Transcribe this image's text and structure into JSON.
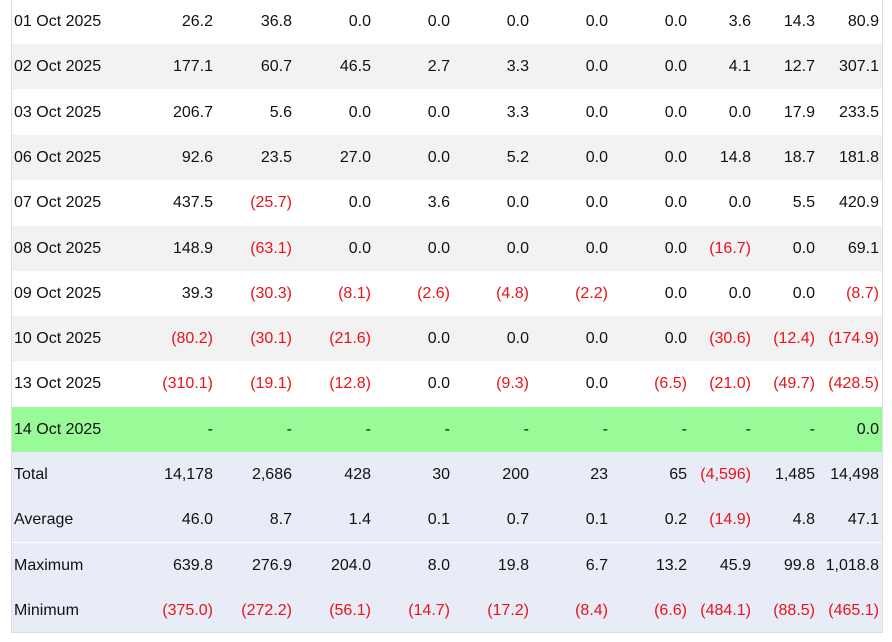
{
  "table": {
    "rows": [
      [
        "01 Oct 2025",
        "26.2",
        "36.8",
        "0.0",
        "0.0",
        "0.0",
        "0.0",
        "0.0",
        "3.6",
        "14.3",
        "80.9"
      ],
      [
        "02 Oct 2025",
        "177.1",
        "60.7",
        "46.5",
        "2.7",
        "3.3",
        "0.0",
        "0.0",
        "4.1",
        "12.7",
        "307.1"
      ],
      [
        "03 Oct 2025",
        "206.7",
        "5.6",
        "0.0",
        "0.0",
        "3.3",
        "0.0",
        "0.0",
        "0.0",
        "17.9",
        "233.5"
      ],
      [
        "06 Oct 2025",
        "92.6",
        "23.5",
        "27.0",
        "0.0",
        "5.2",
        "0.0",
        "0.0",
        "14.8",
        "18.7",
        "181.8"
      ],
      [
        "07 Oct 2025",
        "437.5",
        "(25.7)",
        "0.0",
        "3.6",
        "0.0",
        "0.0",
        "0.0",
        "0.0",
        "5.5",
        "420.9"
      ],
      [
        "08 Oct 2025",
        "148.9",
        "(63.1)",
        "0.0",
        "0.0",
        "0.0",
        "0.0",
        "0.0",
        "(16.7)",
        "0.0",
        "69.1"
      ],
      [
        "09 Oct 2025",
        "39.3",
        "(30.3)",
        "(8.1)",
        "(2.6)",
        "(4.8)",
        "(2.2)",
        "0.0",
        "0.0",
        "0.0",
        "(8.7)"
      ],
      [
        "10 Oct 2025",
        "(80.2)",
        "(30.1)",
        "(21.6)",
        "0.0",
        "0.0",
        "0.0",
        "0.0",
        "(30.6)",
        "(12.4)",
        "(174.9)"
      ],
      [
        "13 Oct 2025",
        "(310.1)",
        "(19.1)",
        "(12.8)",
        "0.0",
        "(9.3)",
        "0.0",
        "(6.5)",
        "(21.0)",
        "(49.7)",
        "(428.5)"
      ],
      [
        "14 Oct 2025",
        "-",
        "-",
        "-",
        "-",
        "-",
        "-",
        "-",
        "-",
        "-",
        "0.0"
      ]
    ],
    "summary_rows": [
      [
        "Total",
        "14,178",
        "2,686",
        "428",
        "30",
        "200",
        "23",
        "65",
        "(4,596)",
        "1,485",
        "14,498"
      ],
      [
        "Average",
        "46.0",
        "8.7",
        "1.4",
        "0.1",
        "0.7",
        "0.1",
        "0.2",
        "(14.9)",
        "4.8",
        "47.1"
      ],
      [
        "Maximum",
        "639.8",
        "276.9",
        "204.0",
        "8.0",
        "19.8",
        "6.7",
        "13.2",
        "45.9",
        "99.8",
        "1,018.8"
      ],
      [
        "Minimum",
        "(375.0)",
        "(272.2)",
        "(56.1)",
        "(14.7)",
        "(17.2)",
        "(8.4)",
        "(6.6)",
        "(484.1)",
        "(88.5)",
        "(465.1)"
      ]
    ]
  }
}
